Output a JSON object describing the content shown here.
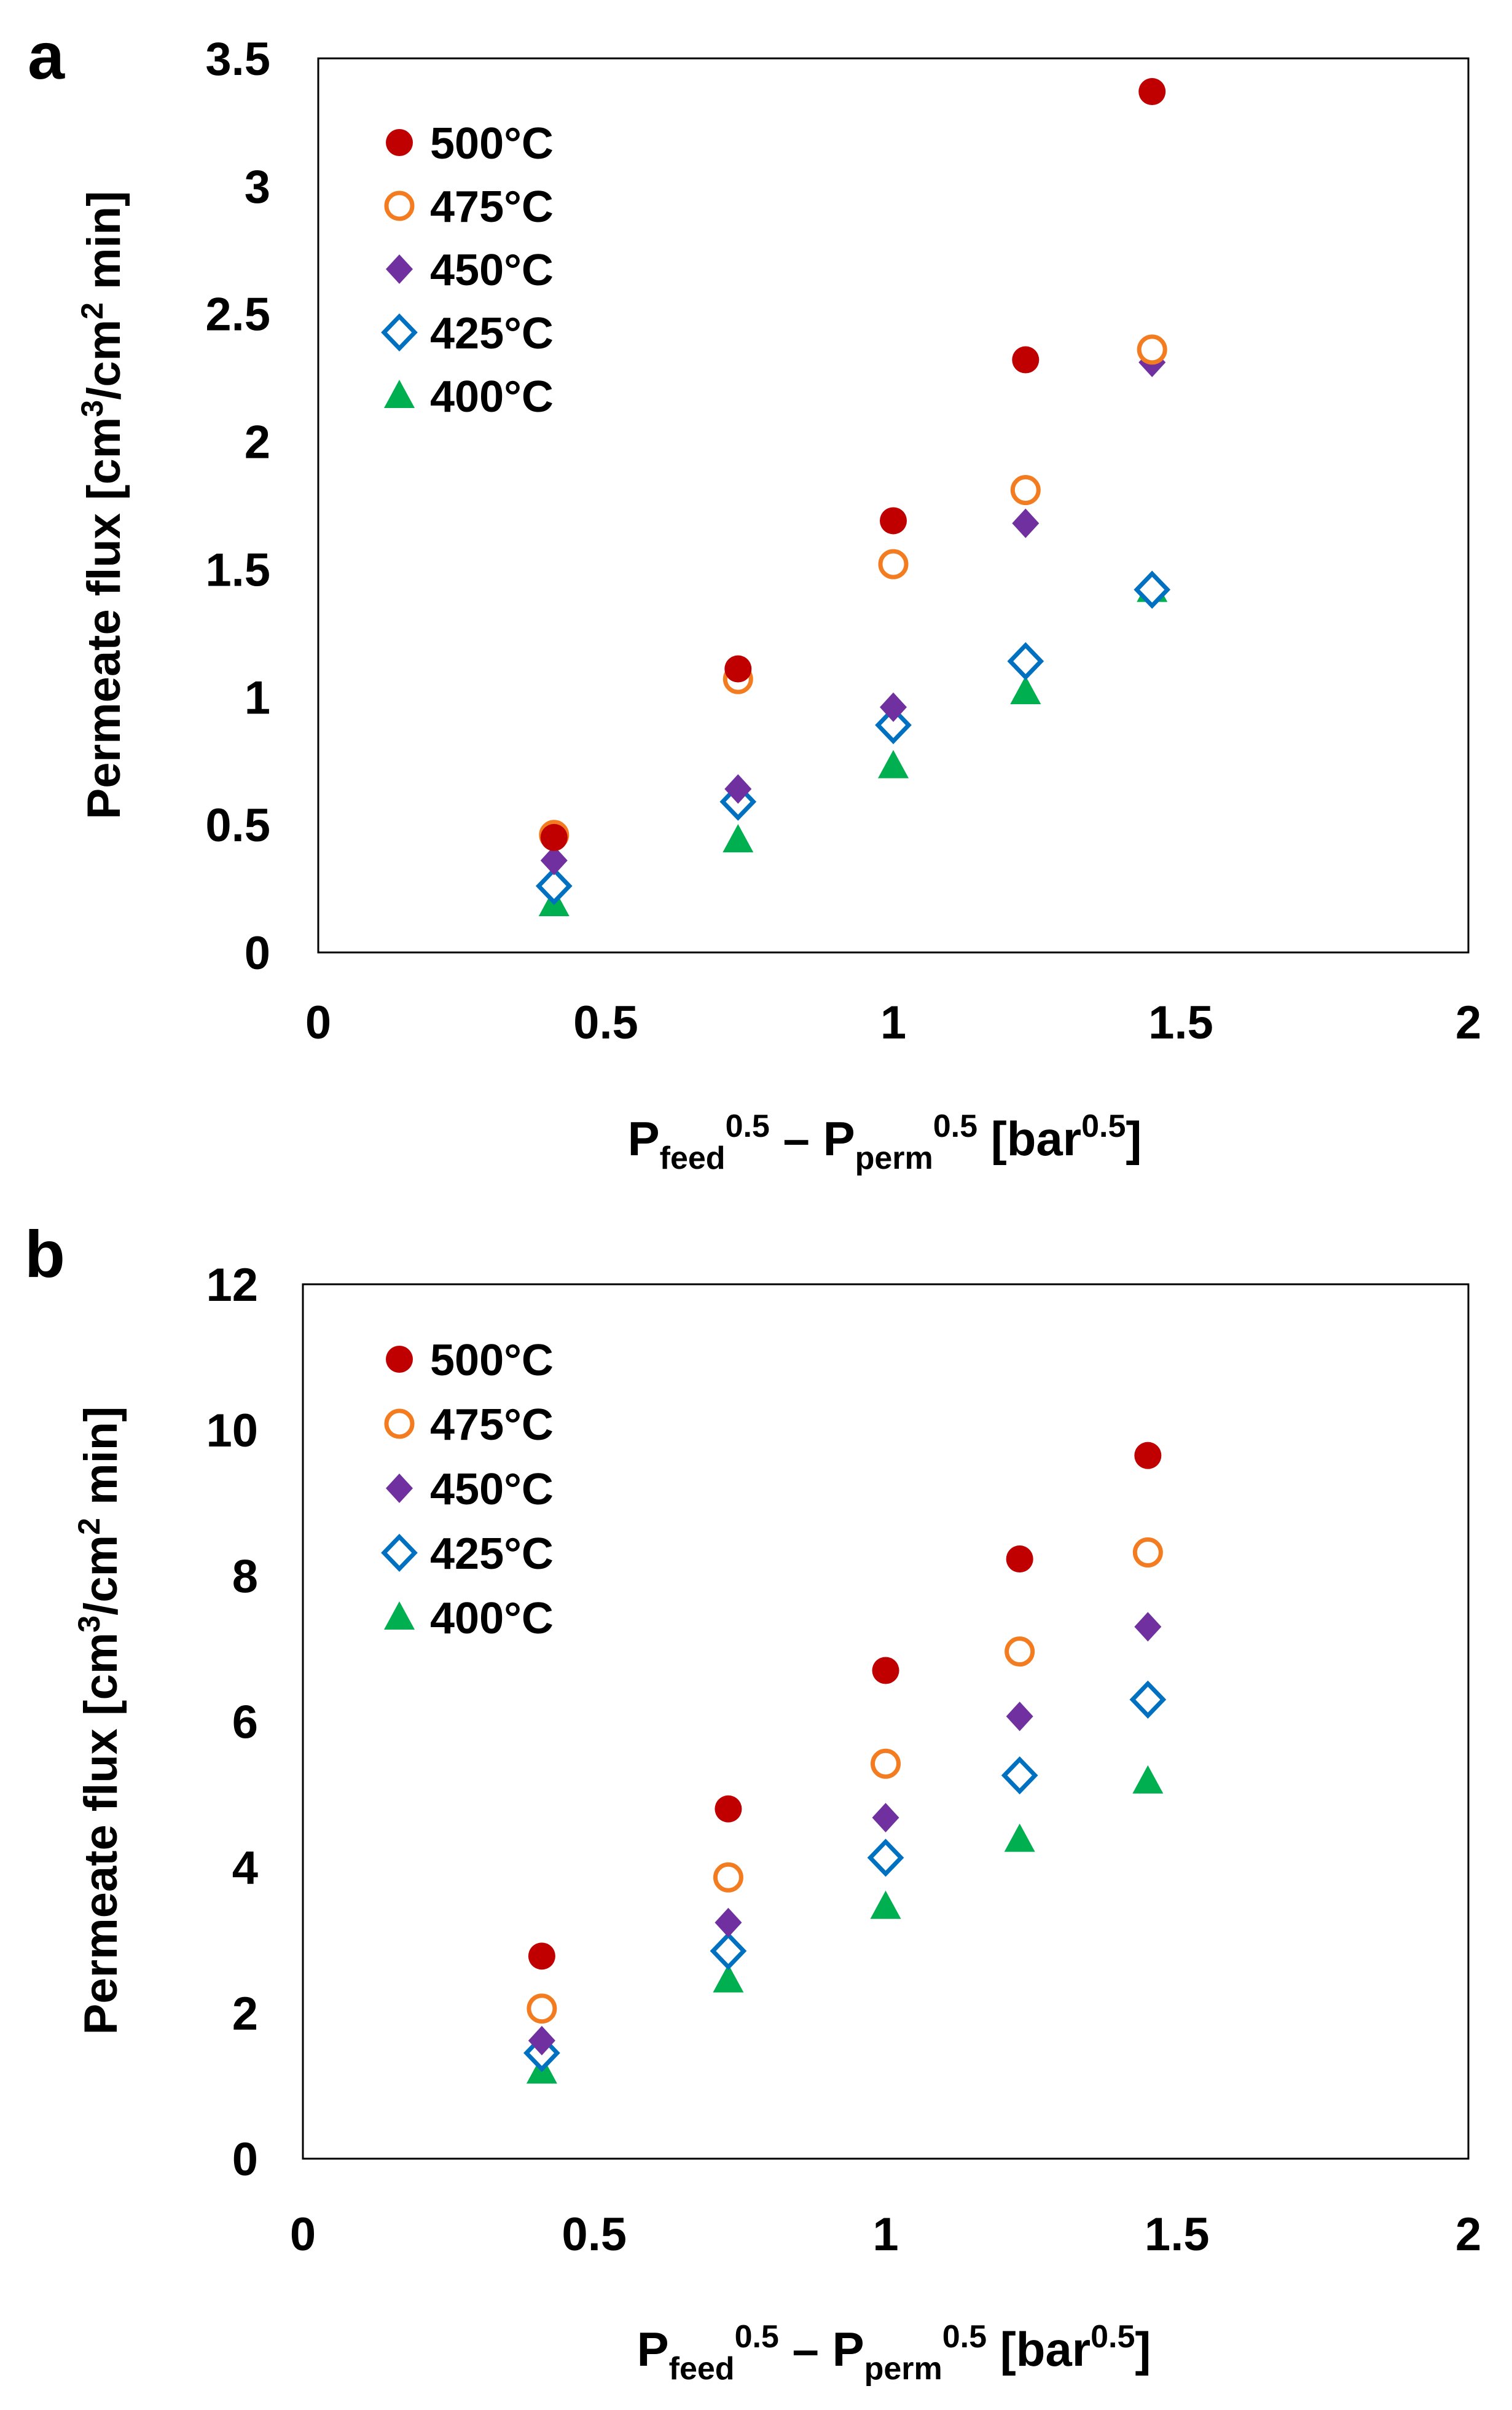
{
  "chart_data": [
    {
      "type": "scatter",
      "panel_label": "a",
      "title": "",
      "xlabel": {
        "main": "P",
        "sub1": "feed",
        "sup1": "0.5",
        "minus": " – P",
        "sub2": "perm",
        "sup2": "0.5",
        "tail1": " [bar",
        "sup3": "0.5",
        "tail2": "]"
      },
      "ylabel": {
        "pre": "Permeate flux [cm",
        "sup1": "3",
        "mid": "/cm",
        "sup2": "2",
        "post": " min]"
      },
      "xlim": [
        0,
        2
      ],
      "ylim": [
        0,
        3.5
      ],
      "xticks": [
        0,
        0.5,
        1,
        1.5,
        2
      ],
      "xtick_labels": [
        "0",
        "0.5",
        "1",
        "1.5",
        "2"
      ],
      "yticks": [
        0,
        0.5,
        1,
        1.5,
        2,
        2.5,
        3,
        3.5
      ],
      "ytick_labels": [
        "0",
        "0.5",
        "1",
        "1.5",
        "2",
        "2.5",
        "3",
        "3.5"
      ],
      "x": [
        0.41,
        0.73,
        1.0,
        1.23,
        1.45
      ],
      "legend_position": "top-left",
      "series": [
        {
          "name": "500°C",
          "marker": "circle-filled",
          "color": "#C00000",
          "values": [
            0.45,
            1.11,
            1.69,
            2.32,
            3.37
          ]
        },
        {
          "name": "475°C",
          "marker": "circle-open",
          "color": "#F47C20",
          "values": [
            0.46,
            1.07,
            1.52,
            1.81,
            2.36
          ]
        },
        {
          "name": "450°C",
          "marker": "diamond-filled",
          "color": "#7030A0",
          "values": [
            0.36,
            0.64,
            0.96,
            1.68,
            2.31
          ]
        },
        {
          "name": "425°C",
          "marker": "diamond-open",
          "color": "#0070C0",
          "values": [
            0.26,
            0.59,
            0.89,
            1.14,
            1.42
          ]
        },
        {
          "name": "400°C",
          "marker": "triangle-filled",
          "color": "#00B050",
          "values": [
            0.19,
            0.44,
            0.73,
            1.02,
            1.42
          ]
        }
      ]
    },
    {
      "type": "scatter",
      "panel_label": "b",
      "title": "",
      "xlabel": {
        "main": "P",
        "sub1": "feed",
        "sup1": "0.5",
        "minus": " – P",
        "sub2": "perm",
        "sup2": "0.5",
        "tail1": " [bar",
        "sup3": "0.5",
        "tail2": "]"
      },
      "ylabel": {
        "pre": "Permeate flux [cm",
        "sup1": "3",
        "mid": "/cm",
        "sup2": "2",
        "post": " min]"
      },
      "xlim": [
        0,
        2
      ],
      "ylim": [
        0,
        12
      ],
      "xticks": [
        0,
        0.5,
        1,
        1.5,
        2
      ],
      "xtick_labels": [
        "0",
        "0.5",
        "1",
        "1.5",
        "2"
      ],
      "yticks": [
        0,
        2,
        4,
        6,
        8,
        10,
        12
      ],
      "ytick_labels": [
        "0",
        "2",
        "4",
        "6",
        "8",
        "10",
        "12"
      ],
      "x": [
        0.41,
        0.73,
        1.0,
        1.23,
        1.45
      ],
      "legend_position": "top-left",
      "series": [
        {
          "name": "500°C",
          "marker": "circle-filled",
          "color": "#C00000",
          "values": [
            2.78,
            4.8,
            6.7,
            8.23,
            9.65
          ]
        },
        {
          "name": "475°C",
          "marker": "circle-open",
          "color": "#F47C20",
          "values": [
            2.06,
            3.86,
            5.42,
            6.96,
            8.32
          ]
        },
        {
          "name": "450°C",
          "marker": "diamond-filled",
          "color": "#7030A0",
          "values": [
            1.62,
            3.24,
            4.68,
            6.07,
            7.3
          ]
        },
        {
          "name": "425°C",
          "marker": "diamond-open",
          "color": "#0070C0",
          "values": [
            1.45,
            2.85,
            4.13,
            5.26,
            6.3
          ]
        },
        {
          "name": "400°C",
          "marker": "triangle-filled",
          "color": "#00B050",
          "values": [
            1.2,
            2.45,
            3.46,
            4.38,
            5.18
          ]
        }
      ]
    }
  ]
}
